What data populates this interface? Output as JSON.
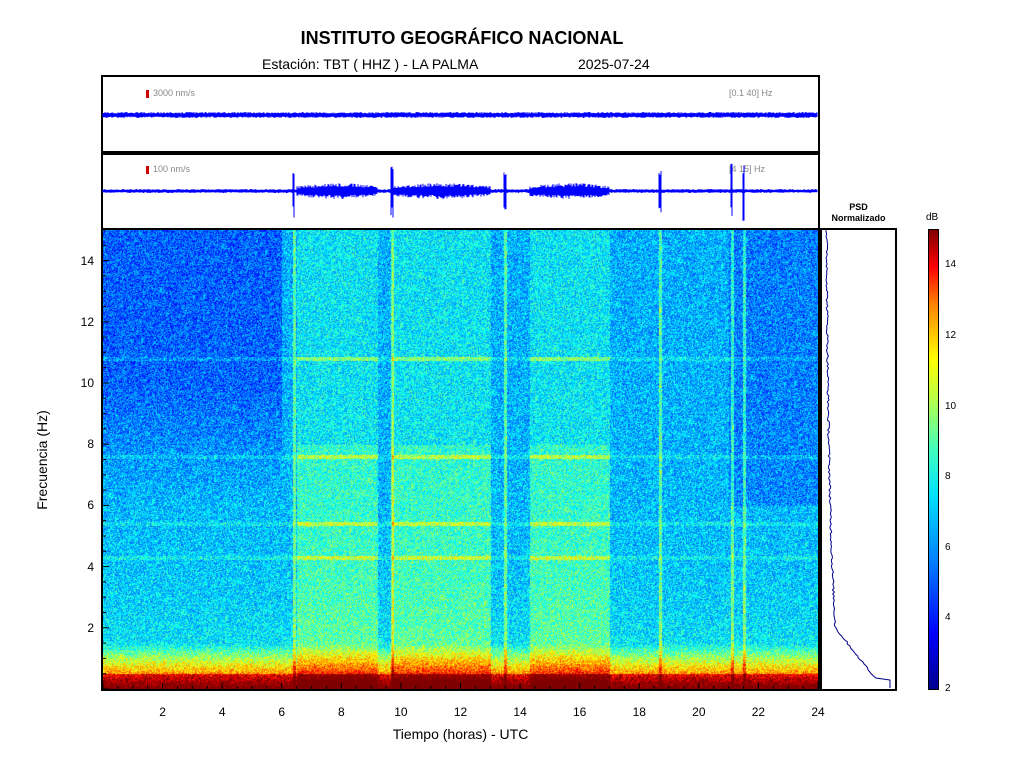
{
  "header": {
    "title": "INSTITUTO GEOGRÁFICO NACIONAL",
    "station": "Estación:  TBT ( HHZ ) - LA PALMA",
    "date": "2025-07-24"
  },
  "traces": [
    {
      "scale_label": "3000 nm/s",
      "band_label": "[0.1 40] Hz",
      "color": "#0000ff"
    },
    {
      "scale_label": "100 nm/s",
      "band_label": "[4 15] Hz",
      "color": "#0000ff"
    }
  ],
  "psd": {
    "title_line1": "PSD",
    "title_line2": "Normalizado",
    "color": "#00008b"
  },
  "colorbar": {
    "unit": "dB",
    "range": [
      2,
      15
    ],
    "ticks": [
      "2",
      "4",
      "6",
      "8",
      "10",
      "12",
      "14"
    ]
  },
  "chart_data": {
    "type": "heatmap",
    "title": "INSTITUTO GEOGRÁFICO NACIONAL",
    "xlabel": "Tiempo (horas) - UTC",
    "ylabel": "Frecuencia  (Hz)",
    "xlim": [
      0,
      24
    ],
    "ylim": [
      0,
      15
    ],
    "x_ticks": [
      "2",
      "4",
      "6",
      "8",
      "10",
      "12",
      "14",
      "16",
      "18",
      "20",
      "22",
      "24"
    ],
    "y_ticks": [
      "2",
      "4",
      "6",
      "8",
      "10",
      "12",
      "14"
    ],
    "colorscale": "jet",
    "active_periods_hours": [
      [
        6.5,
        9.2
      ],
      [
        9.7,
        13.0
      ],
      [
        14.3,
        17.0
      ]
    ],
    "transient_spikes_hours": [
      6.4,
      9.7,
      13.5,
      18.7,
      21.1,
      21.5
    ],
    "spectral_lines_hz": [
      4.3,
      5.4,
      7.6,
      10.8
    ]
  }
}
